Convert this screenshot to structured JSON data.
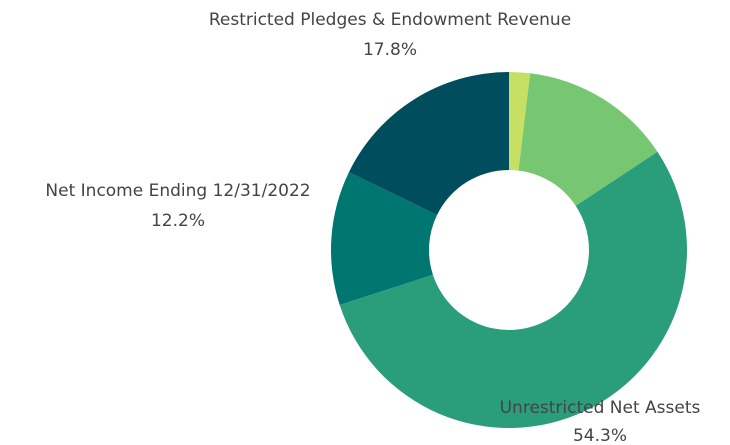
{
  "chart_data": {
    "type": "donut",
    "categories": [
      null,
      null,
      "Unrestricted Net Assets",
      "Net Income Ending 12/31/2022",
      "Restricted Pledges & Endowment Revenue"
    ],
    "values": [
      1.9,
      13.8,
      54.3,
      12.2,
      17.8
    ],
    "value_labels": [
      null,
      null,
      "54.3%",
      "12.2%",
      "17.8%"
    ],
    "colors": [
      "#c5e063",
      "#77c672",
      "#2a9e7a",
      "#007670",
      "#004e5d"
    ]
  }
}
